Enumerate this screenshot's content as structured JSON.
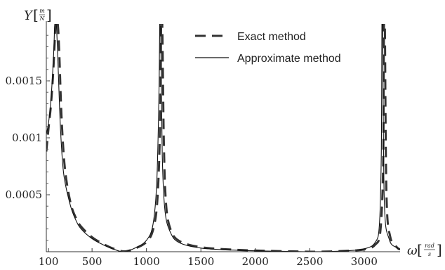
{
  "chart_data": {
    "type": "line",
    "title": "",
    "x_axis": {
      "symbol": "ω",
      "unit_numerator": "rad",
      "unit_denominator": "s",
      "ticks": [
        100,
        500,
        1000,
        1500,
        2000,
        2500,
        3000
      ],
      "tick_labels": [
        "100",
        "500",
        "1000",
        "1500",
        "2000",
        "2500",
        "3000"
      ],
      "range": [
        80,
        3330
      ]
    },
    "y_axis": {
      "symbol": "Y",
      "unit_numerator": "m",
      "unit_denominator": "N",
      "ticks": [
        0.0005,
        0.001,
        0.0015
      ],
      "tick_labels": [
        "0.0005",
        "0.001",
        "0.0015"
      ],
      "range": [
        0,
        0.002
      ]
    },
    "legend": {
      "position": "top-right"
    },
    "series": [
      {
        "name": "Exact method",
        "style": "dashed",
        "color": "#333333",
        "resonances": [
          178,
          1140,
          3185
        ],
        "antiresonances": [
          800,
          2560
        ],
        "points": [
          [
            80,
            0.00088
          ],
          [
            100,
            0.00108
          ],
          [
            120,
            0.00126
          ],
          [
            140,
            0.00152
          ],
          [
            155,
            0.0018
          ],
          [
            165,
            0.002
          ],
          [
            185,
            0.002
          ],
          [
            200,
            0.00172
          ],
          [
            220,
            0.00118
          ],
          [
            250,
            0.00074
          ],
          [
            300,
            0.00044
          ],
          [
            350,
            0.0003
          ],
          [
            400,
            0.00022
          ],
          [
            500,
            0.000128
          ],
          [
            600,
            7e-05
          ],
          [
            700,
            2.6e-05
          ],
          [
            800,
            3e-06
          ],
          [
            900,
            3e-05
          ],
          [
            1000,
            8.5e-05
          ],
          [
            1060,
            0.00019
          ],
          [
            1100,
            0.00045
          ],
          [
            1125,
            0.0011
          ],
          [
            1135,
            0.002
          ],
          [
            1145,
            0.002
          ],
          [
            1160,
            0.00095
          ],
          [
            1180,
            0.00042
          ],
          [
            1220,
            0.0002
          ],
          [
            1300,
            9.5e-05
          ],
          [
            1500,
            4e-05
          ],
          [
            1800,
            1.8e-05
          ],
          [
            2100,
            8e-06
          ],
          [
            2400,
            2e-06
          ],
          [
            2560,
            0.0
          ],
          [
            2800,
            6e-06
          ],
          [
            3000,
            2e-05
          ],
          [
            3100,
            6e-05
          ],
          [
            3150,
            0.00019
          ],
          [
            3175,
            0.0008
          ],
          [
            3182,
            0.002
          ],
          [
            3190,
            0.002
          ],
          [
            3205,
            0.0005
          ],
          [
            3240,
            0.00013
          ],
          [
            3300,
            4e-05
          ],
          [
            3330,
            2e-05
          ]
        ]
      },
      {
        "name": "Approximate method",
        "style": "solid",
        "color": "#111111",
        "resonances": [
          165,
          1125,
          3165
        ],
        "antiresonances": [
          790,
          2540
        ],
        "points": [
          [
            80,
            0.00103
          ],
          [
            100,
            0.00113
          ],
          [
            120,
            0.0013
          ],
          [
            140,
            0.0016
          ],
          [
            150,
            0.0018
          ],
          [
            158,
            0.002
          ],
          [
            172,
            0.002
          ],
          [
            190,
            0.00158
          ],
          [
            210,
            0.00108
          ],
          [
            240,
            0.00068
          ],
          [
            300,
            0.00041
          ],
          [
            350,
            0.00028
          ],
          [
            400,
            0.0002
          ],
          [
            500,
            0.000115
          ],
          [
            600,
            6.2e-05
          ],
          [
            700,
            2.2e-05
          ],
          [
            790,
            0.0
          ],
          [
            900,
            3.5e-05
          ],
          [
            1000,
            0.0001
          ],
          [
            1060,
            0.00024
          ],
          [
            1095,
            0.00062
          ],
          [
            1115,
            0.0014
          ],
          [
            1122,
            0.002
          ],
          [
            1130,
            0.002
          ],
          [
            1145,
            0.00085
          ],
          [
            1170,
            0.00036
          ],
          [
            1220,
            0.00017
          ],
          [
            1300,
            8e-05
          ],
          [
            1500,
            3.2e-05
          ],
          [
            1800,
            1.4e-05
          ],
          [
            2100,
            6e-06
          ],
          [
            2400,
            1e-06
          ],
          [
            2540,
            0.0
          ],
          [
            2800,
            6e-06
          ],
          [
            3000,
            2.5e-05
          ],
          [
            3100,
            8e-05
          ],
          [
            3140,
            0.00024
          ],
          [
            3158,
            0.0009
          ],
          [
            3163,
            0.002
          ],
          [
            3170,
            0.002
          ],
          [
            3185,
            0.00045
          ],
          [
            3230,
            0.00011
          ],
          [
            3300,
            3.5e-05
          ],
          [
            3330,
            1.8e-05
          ]
        ]
      }
    ]
  }
}
